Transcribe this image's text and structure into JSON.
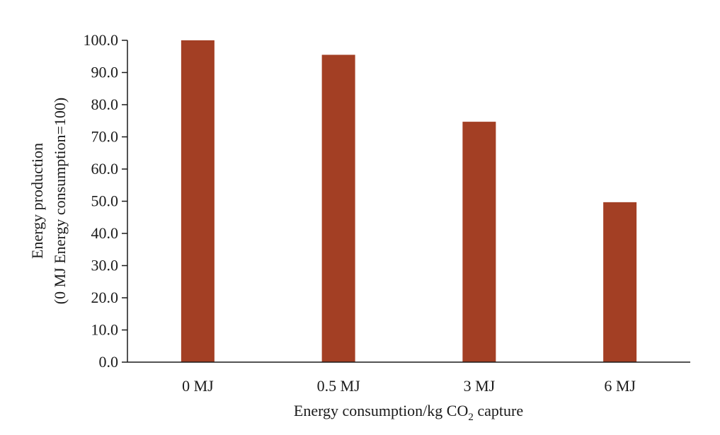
{
  "chart_data": {
    "type": "bar",
    "categories": [
      "0 MJ",
      "0.5 MJ",
      "3 MJ",
      "6 MJ"
    ],
    "values": [
      100.0,
      95.5,
      74.7,
      49.7
    ],
    "ylim": [
      0,
      100
    ],
    "yticks": [
      "0.0",
      "10.0",
      "20.0",
      "30.0",
      "40.0",
      "50.0",
      "60.0",
      "70.0",
      "80.0",
      "90.0",
      "100.0"
    ],
    "xlabel": {
      "prefix": "Energy consumption/kg CO",
      "subscript": "2",
      "suffix": " capture"
    },
    "ylabel": {
      "line1": "Energy production",
      "line2": "(0 MJ Energy consumption=100)"
    },
    "bar_color": "#a33f24",
    "grid": false,
    "legend": "none"
  }
}
